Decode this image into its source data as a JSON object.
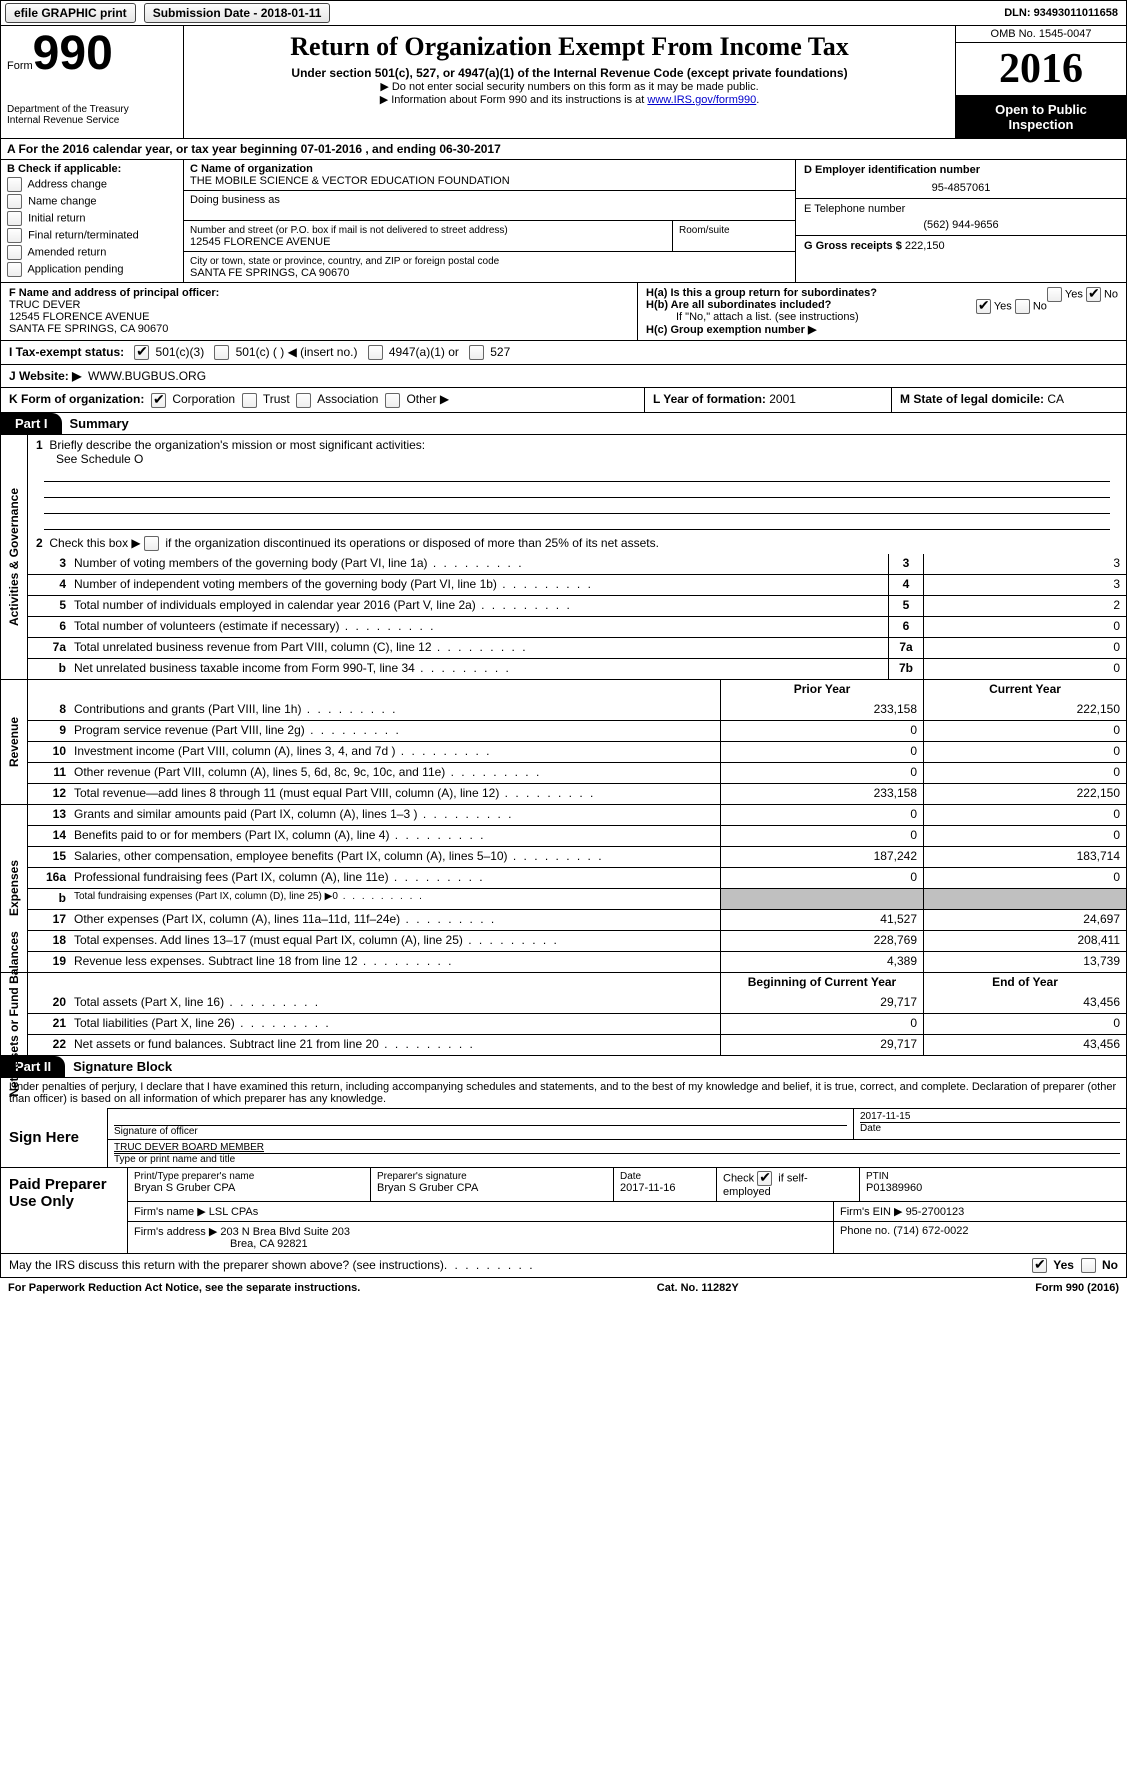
{
  "topbar": {
    "efile": "efile GRAPHIC print",
    "submission_label": "Submission Date - ",
    "submission_date": "2018-01-11",
    "dln_label": "DLN: ",
    "dln": "93493011011658"
  },
  "header": {
    "form_small": "Form",
    "form_big": "990",
    "dept1": "Department of the Treasury",
    "dept2": "Internal Revenue Service",
    "title": "Return of Organization Exempt From Income Tax",
    "subtitle": "Under section 501(c), 527, or 4947(a)(1) of the Internal Revenue Code (except private foundations)",
    "note1": "▶ Do not enter social security numbers on this form as it may be made public.",
    "note2_prefix": "▶ Information about Form 990 and its instructions is at ",
    "note2_link": "www.IRS.gov/form990",
    "omb": "OMB No. 1545-0047",
    "year": "2016",
    "inspection1": "Open to Public",
    "inspection2": "Inspection"
  },
  "rowA": "A  For the 2016 calendar year, or tax year beginning 07-01-2016  , and ending 06-30-2017",
  "colB": {
    "title": "B Check if applicable:",
    "items": [
      "Address change",
      "Name change",
      "Initial return",
      "Final return/terminated",
      "Amended return",
      "Application pending"
    ]
  },
  "colC": {
    "name_label": "C Name of organization",
    "name": "THE MOBILE SCIENCE & VECTOR EDUCATION FOUNDATION",
    "dba_label": "Doing business as",
    "street_label": "Number and street (or P.O. box if mail is not delivered to street address)",
    "room_label": "Room/suite",
    "street": "12545 FLORENCE AVENUE",
    "city_label": "City or town, state or province, country, and ZIP or foreign postal code",
    "city": "SANTA FE SPRINGS, CA  90670"
  },
  "colD": {
    "ein_label": "D Employer identification number",
    "ein": "95-4857061",
    "phone_label": "E Telephone number",
    "phone": "(562) 944-9656",
    "gross_label": "G Gross receipts $ ",
    "gross": "222,150"
  },
  "rowF": {
    "label": "F Name and address of principal officer:",
    "name": "TRUC DEVER",
    "street": "12545 FLORENCE AVENUE",
    "city": "SANTA FE SPRINGS, CA  90670"
  },
  "rowH": {
    "ha": "H(a)  Is this a group return for subordinates?",
    "hb": "H(b)  Are all subordinates included?",
    "hb_note": "If \"No,\" attach a list. (see instructions)",
    "hc": "H(c)  Group exemption number ▶"
  },
  "rowI": {
    "label": "I  Tax-exempt status:",
    "opts": [
      "501(c)(3)",
      "501(c) (   ) ◀ (insert no.)",
      "4947(a)(1) or",
      "527"
    ]
  },
  "rowJ": {
    "label": "J  Website: ▶",
    "value": "WWW.BUGBUS.ORG"
  },
  "rowK": "K Form of organization:",
  "rowK_opts": [
    "Corporation",
    "Trust",
    "Association",
    "Other ▶"
  ],
  "rowL": {
    "label": "L Year of formation: ",
    "value": "2001"
  },
  "rowM": {
    "label": "M State of legal domicile: ",
    "value": "CA"
  },
  "part1": {
    "tab": "Part I",
    "title": "Summary"
  },
  "activities": {
    "label": "Activities & Governance",
    "line1": "Briefly describe the organization's mission or most significant activities:",
    "line1_val": "See Schedule O",
    "line2": "Check this box ▶       if the organization discontinued its operations or disposed of more than 25% of its net assets.",
    "rows": [
      {
        "n": "3",
        "d": "Number of voting members of the governing body (Part VI, line 1a)",
        "b": "3",
        "v": "3"
      },
      {
        "n": "4",
        "d": "Number of independent voting members of the governing body (Part VI, line 1b)",
        "b": "4",
        "v": "3"
      },
      {
        "n": "5",
        "d": "Total number of individuals employed in calendar year 2016 (Part V, line 2a)",
        "b": "5",
        "v": "2"
      },
      {
        "n": "6",
        "d": "Total number of volunteers (estimate if necessary)",
        "b": "6",
        "v": "0"
      },
      {
        "n": "7a",
        "d": "Total unrelated business revenue from Part VIII, column (C), line 12",
        "b": "7a",
        "v": "0"
      },
      {
        "n": "b",
        "d": "Net unrelated business taxable income from Form 990-T, line 34",
        "b": "7b",
        "v": "0"
      }
    ]
  },
  "revenue": {
    "label": "Revenue",
    "hdr_prior": "Prior Year",
    "hdr_curr": "Current Year",
    "rows": [
      {
        "n": "8",
        "d": "Contributions and grants (Part VIII, line 1h)",
        "p": "233,158",
        "c": "222,150"
      },
      {
        "n": "9",
        "d": "Program service revenue (Part VIII, line 2g)",
        "p": "0",
        "c": "0"
      },
      {
        "n": "10",
        "d": "Investment income (Part VIII, column (A), lines 3, 4, and 7d )",
        "p": "0",
        "c": "0"
      },
      {
        "n": "11",
        "d": "Other revenue (Part VIII, column (A), lines 5, 6d, 8c, 9c, 10c, and 11e)",
        "p": "0",
        "c": "0"
      },
      {
        "n": "12",
        "d": "Total revenue—add lines 8 through 11 (must equal Part VIII, column (A), line 12)",
        "p": "233,158",
        "c": "222,150"
      }
    ]
  },
  "expenses": {
    "label": "Expenses",
    "rows": [
      {
        "n": "13",
        "d": "Grants and similar amounts paid (Part IX, column (A), lines 1–3 )",
        "p": "0",
        "c": "0"
      },
      {
        "n": "14",
        "d": "Benefits paid to or for members (Part IX, column (A), line 4)",
        "p": "0",
        "c": "0"
      },
      {
        "n": "15",
        "d": "Salaries, other compensation, employee benefits (Part IX, column (A), lines 5–10)",
        "p": "187,242",
        "c": "183,714"
      },
      {
        "n": "16a",
        "d": "Professional fundraising fees (Part IX, column (A), line 11e)",
        "p": "0",
        "c": "0"
      },
      {
        "n": "b",
        "d": "Total fundraising expenses (Part IX, column (D), line 25) ▶0",
        "p": "",
        "c": "",
        "shade": true,
        "small": true
      },
      {
        "n": "17",
        "d": "Other expenses (Part IX, column (A), lines 11a–11d, 11f–24e)",
        "p": "41,527",
        "c": "24,697"
      },
      {
        "n": "18",
        "d": "Total expenses. Add lines 13–17 (must equal Part IX, column (A), line 25)",
        "p": "228,769",
        "c": "208,411"
      },
      {
        "n": "19",
        "d": "Revenue less expenses. Subtract line 18 from line 12",
        "p": "4,389",
        "c": "13,739"
      }
    ]
  },
  "netassets": {
    "label": "Net Assets or Fund Balances",
    "hdr_begin": "Beginning of Current Year",
    "hdr_end": "End of Year",
    "rows": [
      {
        "n": "20",
        "d": "Total assets (Part X, line 16)",
        "p": "29,717",
        "c": "43,456"
      },
      {
        "n": "21",
        "d": "Total liabilities (Part X, line 26)",
        "p": "0",
        "c": "0"
      },
      {
        "n": "22",
        "d": "Net assets or fund balances. Subtract line 21 from line 20",
        "p": "29,717",
        "c": "43,456"
      }
    ]
  },
  "part2": {
    "tab": "Part II",
    "title": "Signature Block",
    "declare": "Under penalties of perjury, I declare that I have examined this return, including accompanying schedules and statements, and to the best of my knowledge and belief, it is true, correct, and complete. Declaration of preparer (other than officer) is based on all information of which preparer has any knowledge."
  },
  "sign": {
    "label": "Sign Here",
    "sig_label": "Signature of officer",
    "date": "2017-11-15",
    "date_label": "Date",
    "name": "TRUC DEVER  BOARD MEMBER",
    "name_label": "Type or print name and title"
  },
  "paid": {
    "label": "Paid Preparer Use Only",
    "preparer_name_label": "Print/Type preparer's name",
    "preparer_name": "Bryan S Gruber CPA",
    "preparer_sig_label": "Preparer's signature",
    "preparer_sig": "Bryan S Gruber CPA",
    "prep_date_label": "Date",
    "prep_date": "2017-11-16",
    "self_emp": "Check       if self-employed",
    "ptin_label": "PTIN",
    "ptin": "P01389960",
    "firm_name_label": "Firm's name    ▶ ",
    "firm_name": "LSL CPAs",
    "firm_ein_label": "Firm's EIN ▶ ",
    "firm_ein": "95-2700123",
    "firm_addr_label": "Firm's address ▶ ",
    "firm_addr1": "203 N Brea Blvd Suite 203",
    "firm_addr2": "Brea, CA  92821",
    "firm_phone_label": "Phone no. ",
    "firm_phone": "(714) 672-0022"
  },
  "discuss": "May the IRS discuss this return with the preparer shown above? (see instructions)",
  "footer": {
    "pra": "For Paperwork Reduction Act Notice, see the separate instructions.",
    "cat": "Cat. No. 11282Y",
    "form": "Form 990 (2016)"
  }
}
